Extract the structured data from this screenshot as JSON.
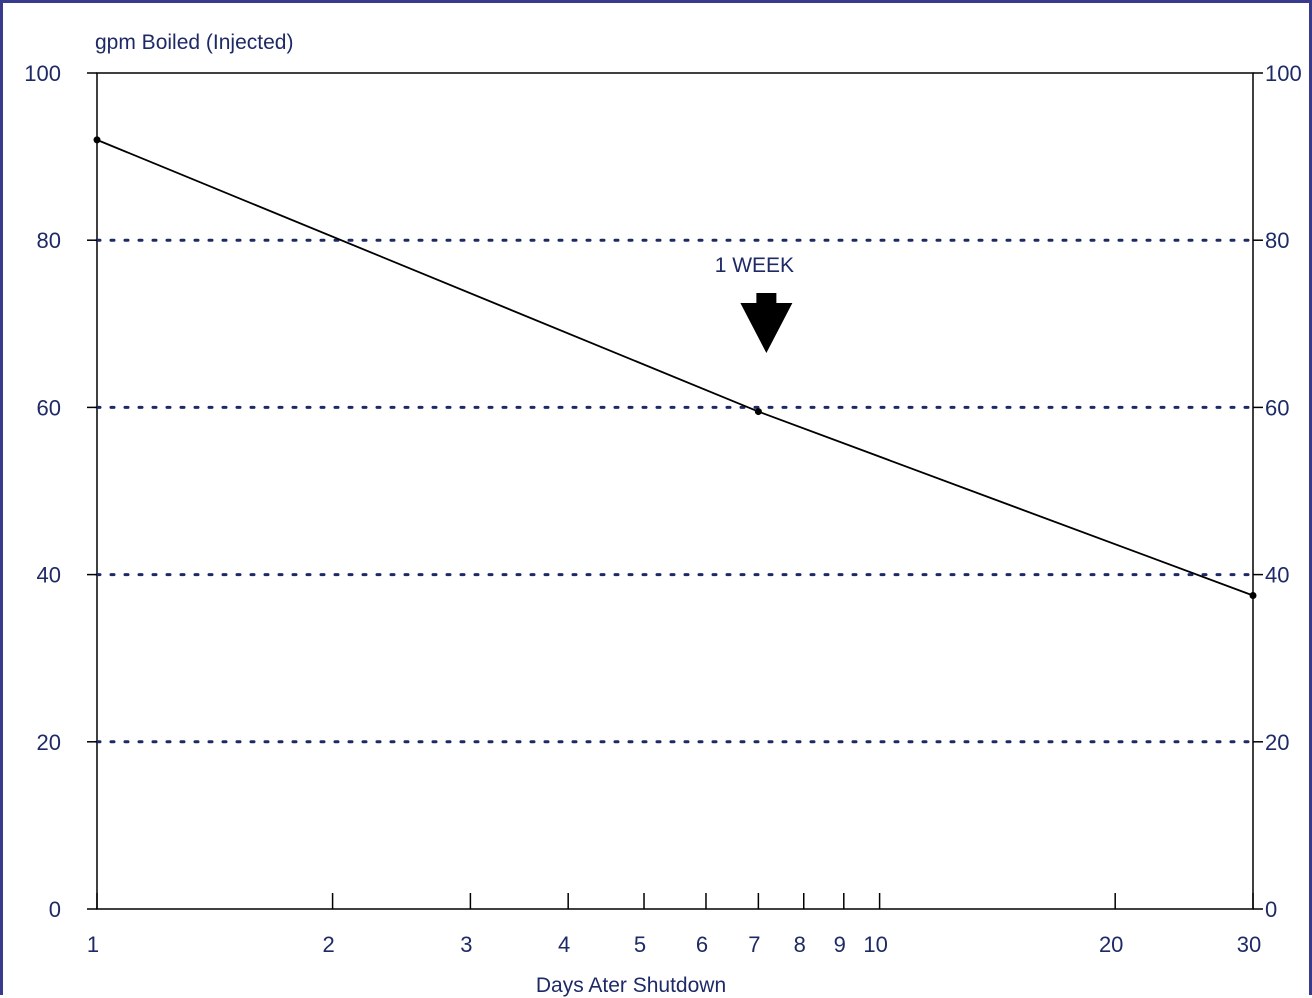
{
  "chart_data": {
    "type": "line",
    "title": "",
    "ylabel": "gpm Boiled (Injected)",
    "xlabel": "Days Ater Shutdown",
    "x_scale": "log",
    "xlim": [
      1,
      30
    ],
    "ylim": [
      0,
      100
    ],
    "x_ticks": [
      1,
      2,
      3,
      4,
      5,
      6,
      7,
      8,
      9,
      10,
      20,
      30
    ],
    "x_tick_labels": [
      "1",
      "2",
      "3",
      "4",
      "5",
      "6",
      "7",
      "8",
      "9",
      "10",
      "20",
      "30"
    ],
    "y_ticks": [
      0,
      20,
      40,
      60,
      80,
      100
    ],
    "y_tick_labels": [
      "0",
      "20",
      "40",
      "60",
      "80",
      "100"
    ],
    "gridlines_y": [
      20,
      40,
      60,
      80
    ],
    "grid_style": "dotted",
    "right_axis_mirrored": true,
    "series": [
      {
        "x": [
          1,
          7,
          30
        ],
        "y": [
          92,
          59.5,
          37.5
        ],
        "color": "#000000"
      }
    ],
    "annotations": [
      {
        "text": "1 WEEK",
        "x": 7,
        "arrow": "down"
      }
    ]
  }
}
